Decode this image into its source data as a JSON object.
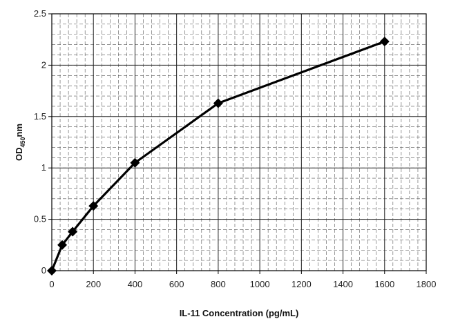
{
  "chart_data": {
    "type": "line",
    "xlabel": "IL-11 Concentration (pg/mL)",
    "ylabel": {
      "main": "OD",
      "sub": "450",
      "unit": "nm"
    },
    "xlim": [
      0,
      1800
    ],
    "ylim": [
      0,
      2.5
    ],
    "x_ticks": [
      "0",
      "200",
      "400",
      "600",
      "800",
      "1000",
      "1200",
      "1400",
      "1600",
      "1800"
    ],
    "y_ticks": [
      "0",
      "0.5",
      "1",
      "1.5",
      "2",
      "2.5"
    ],
    "grid": true,
    "legend": "none",
    "series": [
      {
        "marker": "diamond",
        "color": "#000000",
        "points": [
          {
            "x": 0,
            "y": 0.0
          },
          {
            "x": 50,
            "y": 0.25
          },
          {
            "x": 100,
            "y": 0.38
          },
          {
            "x": 200,
            "y": 0.63
          },
          {
            "x": 400,
            "y": 1.05
          },
          {
            "x": 800,
            "y": 1.63
          },
          {
            "x": 1600,
            "y": 2.23
          }
        ]
      }
    ]
  }
}
